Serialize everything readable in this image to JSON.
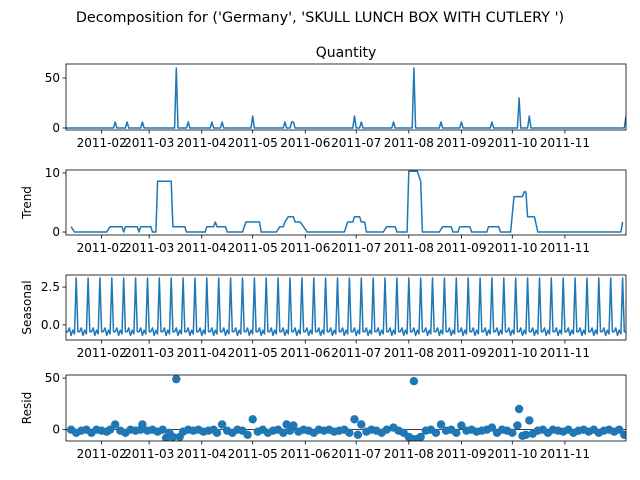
{
  "figure": {
    "suptitle": "Decomposition for ('Germany', 'SKULL LUNCH BOX WITH CUTLERY ')"
  },
  "colors": {
    "series": "#1f77b4",
    "axes": "#000000",
    "background": "#ffffff"
  },
  "chart_data": [
    {
      "type": "line",
      "panel": "observed",
      "title": "Quantity",
      "ylabel": "",
      "ylim": [
        -2,
        64
      ],
      "yticks": [
        0,
        50
      ],
      "xlim": [
        "2011-01-11",
        "2011-12-07"
      ],
      "xtick_labels": [
        "2011-02",
        "2011-03",
        "2011-04",
        "2011-05",
        "2011-06",
        "2011-07",
        "2011-08",
        "2011-09",
        "2011-10",
        "2011-11"
      ],
      "baseline": 0,
      "points": [
        [
          "2011-02-09",
          6
        ],
        [
          "2011-02-16",
          6
        ],
        [
          "2011-02-25",
          6
        ],
        [
          "2011-03-17",
          60
        ],
        [
          "2011-03-24",
          6
        ],
        [
          "2011-04-07",
          6
        ],
        [
          "2011-04-13",
          6
        ],
        [
          "2011-05-01",
          12
        ],
        [
          "2011-05-20",
          6
        ],
        [
          "2011-05-24",
          6
        ],
        [
          "2011-05-25",
          6
        ],
        [
          "2011-06-30",
          12
        ],
        [
          "2011-07-04",
          6
        ],
        [
          "2011-07-23",
          6
        ],
        [
          "2011-08-04",
          60
        ],
        [
          "2011-08-20",
          6
        ],
        [
          "2011-09-01",
          6
        ],
        [
          "2011-09-19",
          6
        ],
        [
          "2011-10-05",
          30
        ],
        [
          "2011-10-11",
          12
        ],
        [
          "2011-12-07",
          12
        ]
      ]
    },
    {
      "type": "line",
      "panel": "trend",
      "title": "",
      "ylabel": "Trend",
      "ylim": [
        -0.5,
        10.5
      ],
      "yticks": [
        0,
        10
      ],
      "xlim": [
        "2011-01-11",
        "2011-12-07"
      ],
      "xtick_labels": [
        "2011-02",
        "2011-03",
        "2011-04",
        "2011-05",
        "2011-06",
        "2011-07",
        "2011-08",
        "2011-09",
        "2011-10",
        "2011-11"
      ],
      "points": [
        [
          "2011-01-14",
          0.9
        ],
        [
          "2011-01-16",
          0
        ],
        [
          "2011-02-04",
          0
        ],
        [
          "2011-02-06",
          0.9
        ],
        [
          "2011-02-13",
          0.9
        ],
        [
          "2011-02-14",
          0
        ],
        [
          "2011-02-15",
          0.9
        ],
        [
          "2011-02-22",
          0.9
        ],
        [
          "2011-02-23",
          0
        ],
        [
          "2011-02-24",
          0.9
        ],
        [
          "2011-03-02",
          0.9
        ],
        [
          "2011-03-03",
          0
        ],
        [
          "2011-03-05",
          0
        ],
        [
          "2011-03-06",
          8.6
        ],
        [
          "2011-03-14",
          8.6
        ],
        [
          "2011-03-15",
          0.9
        ],
        [
          "2011-03-22",
          0.9
        ],
        [
          "2011-03-23",
          0
        ],
        [
          "2011-04-03",
          0
        ],
        [
          "2011-04-04",
          0.9
        ],
        [
          "2011-04-08",
          0.9
        ],
        [
          "2011-04-09",
          1.7
        ],
        [
          "2011-04-10",
          0.9
        ],
        [
          "2011-04-15",
          0.9
        ],
        [
          "2011-04-16",
          0
        ],
        [
          "2011-04-25",
          0
        ],
        [
          "2011-04-27",
          1.7
        ],
        [
          "2011-05-05",
          1.7
        ],
        [
          "2011-05-06",
          0
        ],
        [
          "2011-05-15",
          0
        ],
        [
          "2011-05-17",
          0.9
        ],
        [
          "2011-05-19",
          0.9
        ],
        [
          "2011-05-20",
          1.7
        ],
        [
          "2011-05-22",
          2.6
        ],
        [
          "2011-05-25",
          2.6
        ],
        [
          "2011-05-26",
          1.7
        ],
        [
          "2011-05-29",
          1.7
        ],
        [
          "2011-05-31",
          0.9
        ],
        [
          "2011-06-02",
          0
        ],
        [
          "2011-06-24",
          0
        ],
        [
          "2011-06-26",
          1.7
        ],
        [
          "2011-06-29",
          1.7
        ],
        [
          "2011-06-30",
          2.6
        ],
        [
          "2011-07-03",
          2.6
        ],
        [
          "2011-07-04",
          1.7
        ],
        [
          "2011-07-06",
          1.7
        ],
        [
          "2011-07-07",
          0
        ],
        [
          "2011-07-17",
          0
        ],
        [
          "2011-07-19",
          0.9
        ],
        [
          "2011-07-24",
          0.9
        ],
        [
          "2011-07-25",
          0
        ],
        [
          "2011-07-31",
          0
        ],
        [
          "2011-08-01",
          10.3
        ],
        [
          "2011-08-06",
          10.3
        ],
        [
          "2011-08-08",
          8.6
        ],
        [
          "2011-08-09",
          0
        ],
        [
          "2011-08-19",
          0
        ],
        [
          "2011-08-21",
          0.9
        ],
        [
          "2011-08-26",
          0.9
        ],
        [
          "2011-08-27",
          0
        ],
        [
          "2011-08-30",
          0
        ],
        [
          "2011-08-31",
          0.9
        ],
        [
          "2011-09-06",
          0.9
        ],
        [
          "2011-09-07",
          0
        ],
        [
          "2011-09-16",
          0
        ],
        [
          "2011-09-17",
          0.9
        ],
        [
          "2011-09-23",
          0.9
        ],
        [
          "2011-09-24",
          0
        ],
        [
          "2011-09-30",
          0
        ],
        [
          "2011-10-02",
          6
        ],
        [
          "2011-10-07",
          6
        ],
        [
          "2011-10-08",
          6.8
        ],
        [
          "2011-10-09",
          6.8
        ],
        [
          "2011-10-10",
          2.6
        ],
        [
          "2011-10-14",
          2.6
        ],
        [
          "2011-10-16",
          0
        ],
        [
          "2011-12-04",
          0
        ],
        [
          "2011-12-05",
          1.7
        ]
      ]
    },
    {
      "type": "line",
      "panel": "seasonal",
      "title": "",
      "ylabel": "Seasonal",
      "ylim": [
        -1.0,
        3.3
      ],
      "yticks": [
        0.0,
        2.5
      ],
      "ytick_labels": [
        "0.0",
        "2.5"
      ],
      "xlim": [
        "2011-01-11",
        "2011-12-07"
      ],
      "xtick_labels": [
        "2011-02",
        "2011-03",
        "2011-04",
        "2011-05",
        "2011-06",
        "2011-07",
        "2011-08",
        "2011-09",
        "2011-10",
        "2011-11"
      ],
      "period_days": 7,
      "first_peak": "2011-01-17",
      "weekly_pattern": [
        3.1,
        -0.45,
        -0.45,
        -0.2,
        -0.7,
        -0.35,
        -0.6
      ]
    },
    {
      "type": "scatter",
      "panel": "resid",
      "title": "",
      "ylabel": "Resid",
      "ylim": [
        -11,
        53
      ],
      "yticks": [
        0,
        50
      ],
      "xlim": [
        "2011-01-11",
        "2011-12-07"
      ],
      "xtick_labels": [
        "2011-02",
        "2011-03",
        "2011-04",
        "2011-05",
        "2011-06",
        "2011-07",
        "2011-08",
        "2011-09",
        "2011-10",
        "2011-11"
      ],
      "points": [
        [
          "2011-01-14",
          0
        ],
        [
          "2011-01-17",
          -3
        ],
        [
          "2011-01-20",
          -1
        ],
        [
          "2011-01-23",
          0
        ],
        [
          "2011-01-26",
          -3
        ],
        [
          "2011-01-29",
          0
        ],
        [
          "2011-02-01",
          -1
        ],
        [
          "2011-02-04",
          -2
        ],
        [
          "2011-02-06",
          0
        ],
        [
          "2011-02-09",
          5
        ],
        [
          "2011-02-12",
          -1
        ],
        [
          "2011-02-15",
          -3
        ],
        [
          "2011-02-18",
          0
        ],
        [
          "2011-02-21",
          -1
        ],
        [
          "2011-02-24",
          0
        ],
        [
          "2011-02-25",
          5
        ],
        [
          "2011-02-28",
          -1
        ],
        [
          "2011-03-03",
          0
        ],
        [
          "2011-03-06",
          -2
        ],
        [
          "2011-03-09",
          0
        ],
        [
          "2011-03-11",
          -8
        ],
        [
          "2011-03-13",
          -3
        ],
        [
          "2011-03-15",
          -7
        ],
        [
          "2011-03-17",
          49
        ],
        [
          "2011-03-19",
          -7
        ],
        [
          "2011-03-21",
          -2
        ],
        [
          "2011-03-24",
          0
        ],
        [
          "2011-03-27",
          -1
        ],
        [
          "2011-03-30",
          0
        ],
        [
          "2011-04-02",
          -2
        ],
        [
          "2011-04-05",
          -1
        ],
        [
          "2011-04-08",
          0
        ],
        [
          "2011-04-10",
          -3
        ],
        [
          "2011-04-13",
          5
        ],
        [
          "2011-04-16",
          -1
        ],
        [
          "2011-04-19",
          -3
        ],
        [
          "2011-04-22",
          0
        ],
        [
          "2011-04-25",
          -1
        ],
        [
          "2011-04-28",
          -5
        ],
        [
          "2011-05-01",
          10
        ],
        [
          "2011-05-04",
          -2
        ],
        [
          "2011-05-07",
          0
        ],
        [
          "2011-05-10",
          -3
        ],
        [
          "2011-05-13",
          -1
        ],
        [
          "2011-05-16",
          0
        ],
        [
          "2011-05-19",
          -3
        ],
        [
          "2011-05-21",
          5
        ],
        [
          "2011-05-23",
          -1
        ],
        [
          "2011-05-25",
          4
        ],
        [
          "2011-05-28",
          -2
        ],
        [
          "2011-05-31",
          0
        ],
        [
          "2011-06-03",
          -1
        ],
        [
          "2011-06-06",
          -3
        ],
        [
          "2011-06-09",
          0
        ],
        [
          "2011-06-12",
          -1
        ],
        [
          "2011-06-15",
          0
        ],
        [
          "2011-06-18",
          -2
        ],
        [
          "2011-06-21",
          -1
        ],
        [
          "2011-06-24",
          0
        ],
        [
          "2011-06-27",
          -3
        ],
        [
          "2011-06-30",
          10
        ],
        [
          "2011-07-02",
          -5
        ],
        [
          "2011-07-04",
          5
        ],
        [
          "2011-07-07",
          -2
        ],
        [
          "2011-07-10",
          0
        ],
        [
          "2011-07-13",
          -1
        ],
        [
          "2011-07-16",
          -3
        ],
        [
          "2011-07-19",
          0
        ],
        [
          "2011-07-23",
          2
        ],
        [
          "2011-07-26",
          -1
        ],
        [
          "2011-07-29",
          -3
        ],
        [
          "2011-08-01",
          -7
        ],
        [
          "2011-08-03",
          -9
        ],
        [
          "2011-08-04",
          47
        ],
        [
          "2011-08-06",
          -9
        ],
        [
          "2011-08-08",
          -7
        ],
        [
          "2011-08-11",
          -1
        ],
        [
          "2011-08-14",
          0
        ],
        [
          "2011-08-17",
          -3
        ],
        [
          "2011-08-20",
          5
        ],
        [
          "2011-08-23",
          -1
        ],
        [
          "2011-08-26",
          0
        ],
        [
          "2011-08-29",
          -3
        ],
        [
          "2011-09-01",
          4
        ],
        [
          "2011-09-04",
          -1
        ],
        [
          "2011-09-07",
          0
        ],
        [
          "2011-09-10",
          -2
        ],
        [
          "2011-09-13",
          -1
        ],
        [
          "2011-09-16",
          0
        ],
        [
          "2011-09-19",
          2
        ],
        [
          "2011-09-22",
          -3
        ],
        [
          "2011-09-25",
          0
        ],
        [
          "2011-09-28",
          -1
        ],
        [
          "2011-10-01",
          -3
        ],
        [
          "2011-10-04",
          4
        ],
        [
          "2011-10-05",
          20
        ],
        [
          "2011-10-07",
          -6
        ],
        [
          "2011-10-09",
          -5
        ],
        [
          "2011-10-11",
          9
        ],
        [
          "2011-10-13",
          -4
        ],
        [
          "2011-10-16",
          -1
        ],
        [
          "2011-10-19",
          0
        ],
        [
          "2011-10-22",
          -3
        ],
        [
          "2011-10-25",
          0
        ],
        [
          "2011-10-28",
          -1
        ],
        [
          "2011-10-31",
          -2
        ],
        [
          "2011-11-03",
          0
        ],
        [
          "2011-11-06",
          -3
        ],
        [
          "2011-11-09",
          -1
        ],
        [
          "2011-11-12",
          0
        ],
        [
          "2011-11-15",
          -2
        ],
        [
          "2011-11-18",
          0
        ],
        [
          "2011-11-21",
          -3
        ],
        [
          "2011-11-24",
          -1
        ],
        [
          "2011-11-27",
          0
        ],
        [
          "2011-11-30",
          -2
        ],
        [
          "2011-12-03",
          0
        ],
        [
          "2011-12-06",
          -5
        ]
      ]
    }
  ]
}
